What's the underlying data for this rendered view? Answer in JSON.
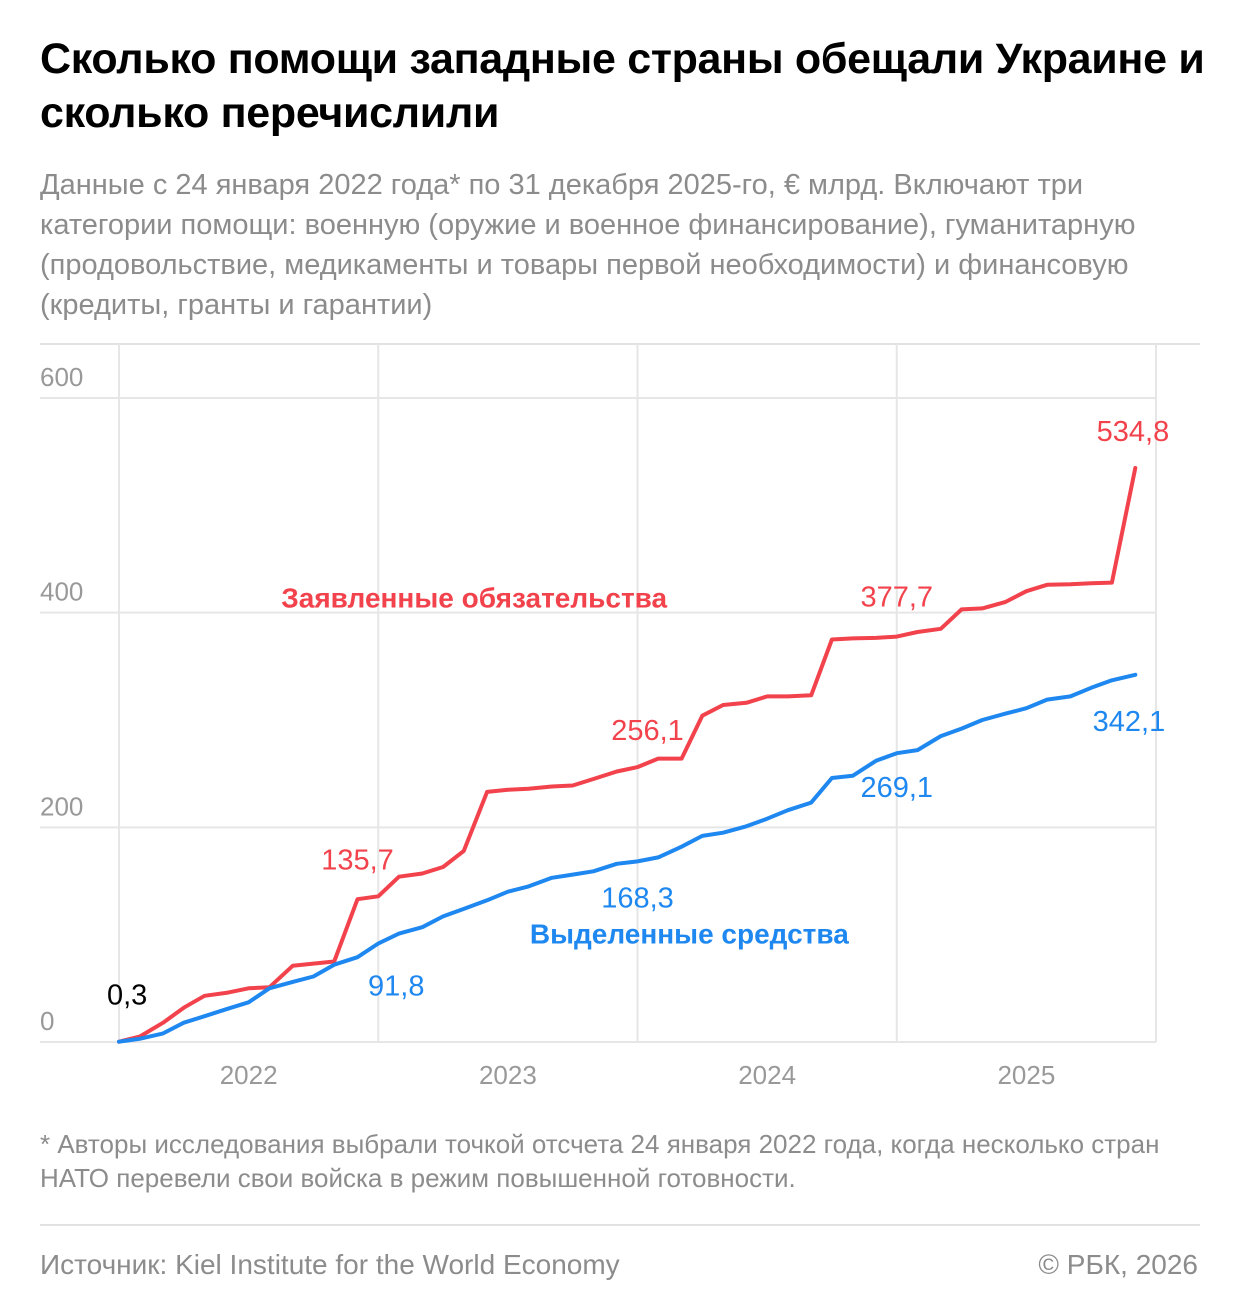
{
  "title": "Сколько помощи западные страны обещали Украине и сколько перечислили",
  "subtitle": "Данные с 24 января 2022 года* по 31 декабря 2025-го, € млрд. Включают три категории помощи: военную (оружие и военное финансирование), гуманитарную (продовольствие, медикаменты и товары первой необходимости) и финансовую (кредиты, гранты и гарантии)",
  "footnote": "* Авторы исследования выбрали точкой отсчета 24 января 2022 года, когда несколько стран НАТО перевели свои войска в режим повышенной готовности.",
  "source": "Источник: Kiel Institute for the World Economy",
  "copyright": "© РБК, 2026",
  "colors": {
    "pledged": "#f2424c",
    "allocated": "#1e88f0",
    "grid": "#e6e6e6",
    "axis_text": "#999999"
  },
  "chart_data": {
    "type": "line",
    "xlim": [
      2022.0,
      2026.0
    ],
    "ylim": [
      0,
      650
    ],
    "yticks": [
      0,
      200,
      400,
      600
    ],
    "ytick_labels": [
      "0",
      "200",
      "400",
      "600"
    ],
    "xtick_labels": [
      {
        "label": "2022",
        "x": 2022.5
      },
      {
        "label": "2023",
        "x": 2023.5
      },
      {
        "label": "2024",
        "x": 2024.5
      },
      {
        "label": "2025",
        "x": 2025.5
      }
    ],
    "series": [
      {
        "name": "Заявленные обязательства",
        "color": "#f2424c",
        "points": [
          [
            2022.0,
            0.3
          ],
          [
            2022.08,
            5
          ],
          [
            2022.17,
            18
          ],
          [
            2022.25,
            32
          ],
          [
            2022.33,
            43
          ],
          [
            2022.42,
            46
          ],
          [
            2022.5,
            50
          ],
          [
            2022.58,
            51
          ],
          [
            2022.67,
            71
          ],
          [
            2022.75,
            73
          ],
          [
            2022.83,
            75
          ],
          [
            2022.92,
            133
          ],
          [
            2023.0,
            135.7
          ],
          [
            2023.08,
            154
          ],
          [
            2023.17,
            157
          ],
          [
            2023.25,
            163
          ],
          [
            2023.33,
            178
          ],
          [
            2023.42,
            233
          ],
          [
            2023.5,
            235
          ],
          [
            2023.58,
            236
          ],
          [
            2023.67,
            238
          ],
          [
            2023.75,
            239
          ],
          [
            2023.83,
            245
          ],
          [
            2023.92,
            252
          ],
          [
            2024.0,
            256.1
          ],
          [
            2024.08,
            264
          ],
          [
            2024.17,
            264
          ],
          [
            2024.25,
            304
          ],
          [
            2024.33,
            314
          ],
          [
            2024.42,
            316
          ],
          [
            2024.5,
            322
          ],
          [
            2024.58,
            322
          ],
          [
            2024.67,
            323
          ],
          [
            2024.75,
            375
          ],
          [
            2024.83,
            376
          ],
          [
            2024.92,
            376.5
          ],
          [
            2025.0,
            377.7
          ],
          [
            2025.08,
            382
          ],
          [
            2025.17,
            385
          ],
          [
            2025.25,
            403
          ],
          [
            2025.33,
            404
          ],
          [
            2025.42,
            410
          ],
          [
            2025.5,
            420
          ],
          [
            2025.58,
            426
          ],
          [
            2025.67,
            426.5
          ],
          [
            2025.75,
            427.5
          ],
          [
            2025.83,
            428
          ],
          [
            2025.92,
            534.8
          ]
        ]
      },
      {
        "name": "Выделенные средства",
        "color": "#1e88f0",
        "points": [
          [
            2022.0,
            0.3
          ],
          [
            2022.08,
            3
          ],
          [
            2022.17,
            8
          ],
          [
            2022.25,
            18
          ],
          [
            2022.33,
            24
          ],
          [
            2022.42,
            31
          ],
          [
            2022.5,
            37
          ],
          [
            2022.58,
            50
          ],
          [
            2022.67,
            56
          ],
          [
            2022.75,
            61
          ],
          [
            2022.83,
            72
          ],
          [
            2022.92,
            79
          ],
          [
            2023.0,
            91.8
          ],
          [
            2023.08,
            101
          ],
          [
            2023.17,
            107
          ],
          [
            2023.25,
            117
          ],
          [
            2023.33,
            124
          ],
          [
            2023.42,
            132
          ],
          [
            2023.5,
            140
          ],
          [
            2023.58,
            145
          ],
          [
            2023.67,
            153
          ],
          [
            2023.75,
            156
          ],
          [
            2023.83,
            159
          ],
          [
            2023.92,
            166
          ],
          [
            2024.0,
            168.3
          ],
          [
            2024.08,
            172
          ],
          [
            2024.17,
            182
          ],
          [
            2024.25,
            192
          ],
          [
            2024.33,
            195
          ],
          [
            2024.42,
            201
          ],
          [
            2024.5,
            208
          ],
          [
            2024.58,
            216
          ],
          [
            2024.67,
            223
          ],
          [
            2024.75,
            246
          ],
          [
            2024.83,
            248
          ],
          [
            2024.92,
            262
          ],
          [
            2025.0,
            269.1
          ],
          [
            2025.08,
            272
          ],
          [
            2025.17,
            285
          ],
          [
            2025.25,
            292
          ],
          [
            2025.33,
            300
          ],
          [
            2025.42,
            306
          ],
          [
            2025.5,
            311
          ],
          [
            2025.58,
            319
          ],
          [
            2025.67,
            322
          ],
          [
            2025.75,
            330
          ],
          [
            2025.83,
            337
          ],
          [
            2025.92,
            342.1
          ]
        ]
      }
    ],
    "data_labels": [
      {
        "text": "0,3",
        "x": 2022.0,
        "y": 0.3,
        "color": "#000000",
        "anchor": "start",
        "dx": -12,
        "dy": -37
      },
      {
        "text": "135,7",
        "x": 2022.92,
        "y": 135.7,
        "color": "#f2424c",
        "anchor": "middle",
        "dx": 0,
        "dy": -27
      },
      {
        "text": "91,8",
        "x": 2023.0,
        "y": 91.8,
        "color": "#1e88f0",
        "anchor": "middle",
        "dx": 18,
        "dy": 52
      },
      {
        "text": "256,1",
        "x": 2024.0,
        "y": 256.1,
        "color": "#f2424c",
        "anchor": "middle",
        "dx": 10,
        "dy": -27
      },
      {
        "text": "168,3",
        "x": 2024.0,
        "y": 168.3,
        "color": "#1e88f0",
        "anchor": "middle",
        "dx": 0,
        "dy": 46
      },
      {
        "text": "377,7",
        "x": 2025.0,
        "y": 377.7,
        "color": "#f2424c",
        "anchor": "middle",
        "dx": 0,
        "dy": -30
      },
      {
        "text": "269,1",
        "x": 2025.0,
        "y": 269.1,
        "color": "#1e88f0",
        "anchor": "middle",
        "dx": 0,
        "dy": 44
      },
      {
        "text": "534,8",
        "x": 2025.92,
        "y": 534.8,
        "color": "#f2424c",
        "anchor": "end",
        "dx": 34,
        "dy": -27
      },
      {
        "text": "342,1",
        "x": 2025.92,
        "y": 342.1,
        "color": "#1e88f0",
        "anchor": "end",
        "dx": 30,
        "dy": 56
      }
    ],
    "series_labels": [
      {
        "text": "Заявленные обязательства",
        "color": "#f2424c",
        "x": 2023.37,
        "y": 405
      },
      {
        "text": "Выделенные средства",
        "color": "#1e88f0",
        "x": 2024.2,
        "y": 92
      }
    ]
  }
}
